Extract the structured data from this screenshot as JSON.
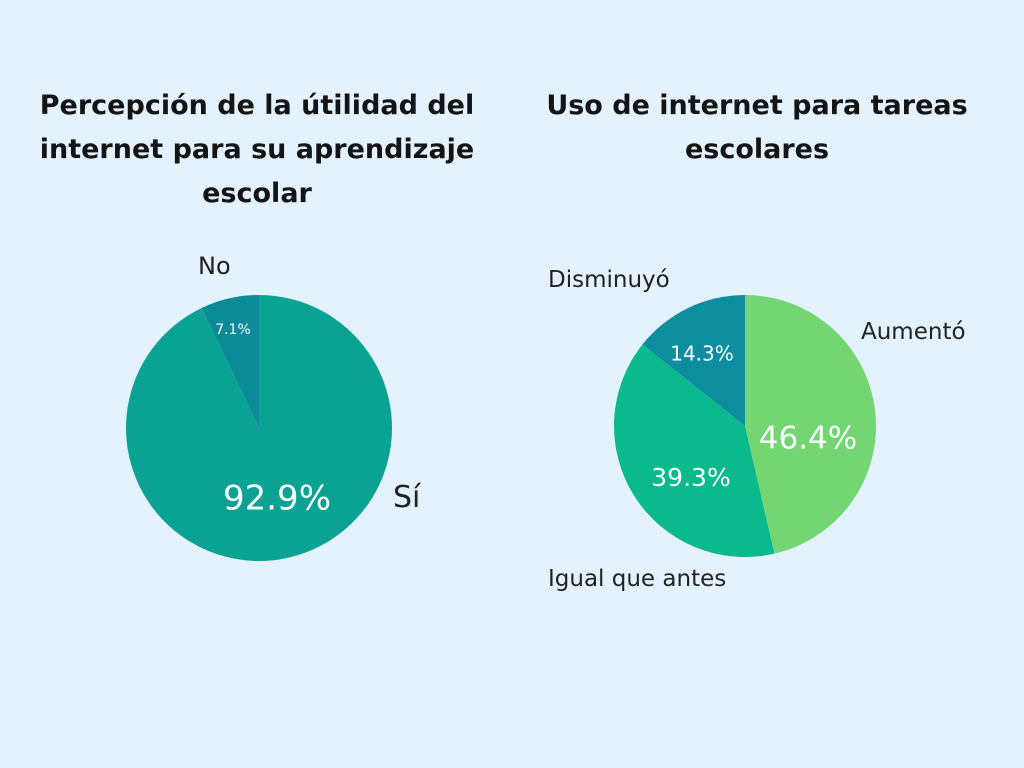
{
  "colors": {
    "background": "#e3f2fd",
    "teal": "#0aa393",
    "dark_teal": "#0b8a98",
    "light_green": "#73d672",
    "emerald": "#0ab98c",
    "blue_teal": "#0d8e9e"
  },
  "chart_data": [
    {
      "type": "pie",
      "title": "Percepción de la útilidad del internet para su aprendizaje escolar",
      "slices": [
        {
          "label": "Sí",
          "value": 92.9,
          "value_label": "92.9%",
          "color": "#0aa393"
        },
        {
          "label": "No",
          "value": 7.1,
          "value_label": "7.1%",
          "color": "#0b8a98"
        }
      ]
    },
    {
      "type": "pie",
      "title": "Uso de internet para tareas escolares",
      "slices": [
        {
          "label": "Aumentó",
          "value": 46.4,
          "value_label": "46.4%",
          "color": "#73d672"
        },
        {
          "label": "Igual que antes",
          "value": 39.3,
          "value_label": "39.3%",
          "color": "#0ab98c"
        },
        {
          "label": "Disminuyó",
          "value": 14.3,
          "value_label": "14.3%",
          "color": "#0d8e9e"
        }
      ]
    }
  ]
}
